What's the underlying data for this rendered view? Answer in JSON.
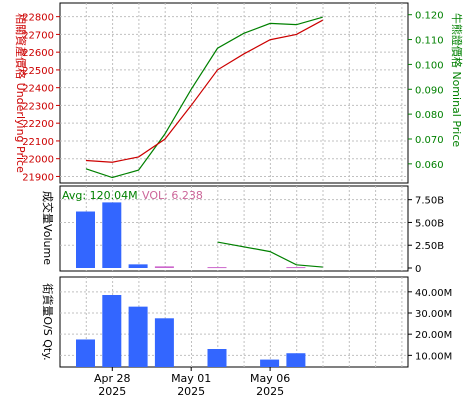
{
  "colors": {
    "underlying": "#cc0000",
    "nominal": "#008000",
    "bar": "#3366ff",
    "bar_pink": "#cc66cc",
    "grid": "#c0c0c0",
    "frame": "#000000",
    "vol_label": "#cc6699"
  },
  "chart_data": [
    {
      "type": "line",
      "ylabel_left": "相關資產價格 Underlying Price",
      "ylabel_right": "牛熊證價格 Nominal Price",
      "left_ticks": [
        "21900",
        "22000",
        "22100",
        "22200",
        "22300",
        "22400",
        "22500",
        "22600",
        "22700",
        "22800"
      ],
      "right_ticks": [
        "0.060",
        "0.070",
        "0.080",
        "0.090",
        "0.100",
        "0.110",
        "0.120"
      ],
      "ylim_left": [
        21880,
        22860
      ],
      "ylim_right": [
        0.0535,
        0.1235
      ],
      "grid": true,
      "series": [
        {
          "axis": "left",
          "x": [
            1,
            2,
            3,
            4,
            5,
            6,
            7,
            8,
            9,
            10
          ],
          "values": [
            21990,
            21980,
            22010,
            22110,
            22300,
            22500,
            22590,
            22670,
            22700,
            22780
          ]
        },
        {
          "axis": "right",
          "x": [
            1,
            2,
            3,
            4,
            5,
            6,
            7,
            8,
            9,
            10
          ],
          "values": [
            0.058,
            0.0545,
            0.0575,
            0.072,
            0.09,
            0.1065,
            0.1125,
            0.1165,
            0.116,
            0.119
          ]
        }
      ]
    },
    {
      "type": "bar",
      "legend_avg": "Avg: 120.04M",
      "legend_vol": "VOL: 6.238",
      "ylabel_left": "成交量Volume",
      "right_ticks": [
        "0",
        "2.50B",
        "5.00B",
        "7.50B"
      ],
      "ylim": [
        0,
        9.0
      ],
      "grid": true,
      "bars": [
        {
          "x": 1,
          "value": 6.2,
          "color": "bar"
        },
        {
          "x": 2,
          "value": 7.2,
          "color": "bar"
        },
        {
          "x": 3,
          "value": 0.4,
          "color": "bar"
        },
        {
          "x": 4,
          "value": 0.18,
          "color": "bar_pink"
        },
        {
          "x": 6,
          "value": 0.1,
          "color": "bar_pink"
        },
        {
          "x": 9,
          "value": 0.1,
          "color": "bar_pink"
        }
      ],
      "line": {
        "x": [
          6,
          8,
          9,
          10
        ],
        "values": [
          2.85,
          1.8,
          0.35,
          0.1
        ]
      }
    },
    {
      "type": "bar",
      "ylabel_left": "街貨量O/S Qty.",
      "right_ticks": [
        "10.00M",
        "20.00M",
        "30.00M",
        "40.00M"
      ],
      "ylim": [
        4.5,
        47.0
      ],
      "grid": true,
      "bars": [
        {
          "x": 1,
          "value": 17.5
        },
        {
          "x": 2,
          "value": 38.5
        },
        {
          "x": 3,
          "value": 33.0
        },
        {
          "x": 4,
          "value": 27.5
        },
        {
          "x": 6,
          "value": 13.0
        },
        {
          "x": 8,
          "value": 8.0
        },
        {
          "x": 9,
          "value": 11.0
        }
      ],
      "x_labels": [
        {
          "x": 2,
          "line1": "Apr 28",
          "line2": "2025"
        },
        {
          "x": 5,
          "line1": "May 01",
          "line2": "2025"
        },
        {
          "x": 8,
          "line1": "May 06",
          "line2": "2025"
        }
      ]
    }
  ]
}
